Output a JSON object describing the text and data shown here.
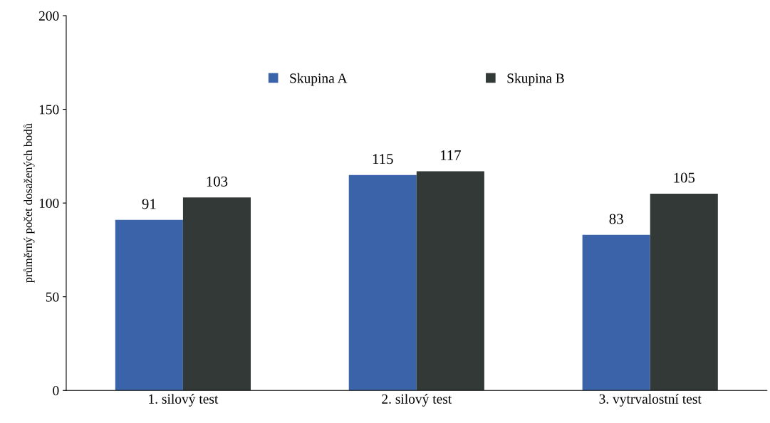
{
  "chart_data": {
    "type": "bar",
    "ylabel": "průměrný počet dosažených bodů",
    "categories": [
      "1. silový test",
      "2. silový test",
      "3. vytrvalostní test"
    ],
    "series": [
      {
        "name": "Skupina A",
        "color": "#3b63a9",
        "values": [
          91,
          115,
          83
        ]
      },
      {
        "name": "Skupina B",
        "color": "#333936",
        "values": [
          103,
          117,
          105
        ]
      }
    ],
    "ylim": [
      0,
      200
    ],
    "yticks": [
      0,
      50,
      100,
      150,
      200
    ],
    "data_labels": true,
    "legend": "top",
    "grid": false
  }
}
